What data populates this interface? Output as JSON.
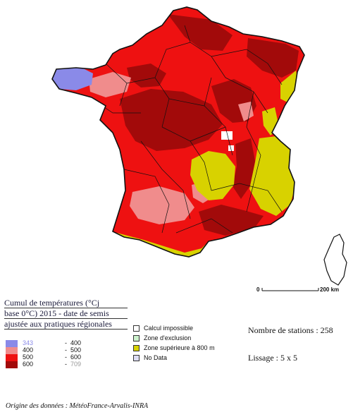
{
  "map": {
    "scale_start": "0",
    "scale_end": "200 km"
  },
  "legend": {
    "title_lines": [
      "Cumul de températures (°Cj",
      "base 0°C) 2015 - date de semis",
      "ajustée aux pratiques régionales"
    ],
    "classes": [
      {
        "low": "343",
        "high": "400",
        "color": "#8a8ae8"
      },
      {
        "low": "400",
        "high": "500",
        "color": "#f08c8c"
      },
      {
        "low": "500",
        "high": "600",
        "color": "#ee1111"
      },
      {
        "low": "600",
        "high": "709",
        "color": "#a20a0a"
      }
    ],
    "keys": [
      {
        "label": "Calcul  impossible",
        "color": "#ffffff"
      },
      {
        "label": "Zone d'exclusion",
        "color": "#ccf2cc"
      },
      {
        "label": "Zone supérieure à 800 m",
        "color": "#d8d200"
      },
      {
        "label": "No Data",
        "color": "#dcdcf4"
      }
    ]
  },
  "info": {
    "stations_text": "Nombre de stations : 258",
    "smoothing_text": "Lissage : 5 x 5"
  },
  "footer": {
    "origin_text": "Origine des données : MétéoFrance-Arvalis-INRA"
  }
}
